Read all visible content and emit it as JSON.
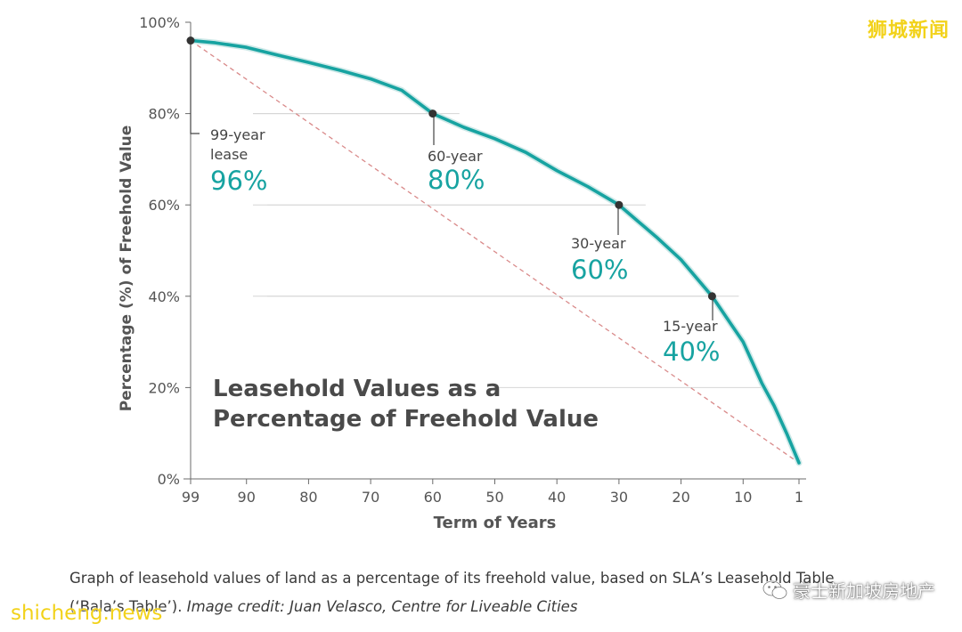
{
  "chart_data": {
    "type": "line",
    "title": "Leasehold Values as a Percentage of Freehold Value",
    "title_lines": [
      "Leasehold Values as a",
      "Percentage of Freehold Value"
    ],
    "xlabel": "Term of Years",
    "ylabel": "Percentage (%) of Freehold Value",
    "x_ticks": [
      99,
      90,
      80,
      70,
      60,
      50,
      40,
      30,
      20,
      10,
      1
    ],
    "y_ticks": [
      "0%",
      "20%",
      "40%",
      "60%",
      "80%",
      "100%"
    ],
    "xlim": [
      99,
      1
    ],
    "ylim": [
      0,
      100
    ],
    "grid": "horizontal at annotated levels",
    "series": [
      {
        "color": "#17a3a1",
        "x": [
          99,
          95,
          90,
          85,
          80,
          75,
          70,
          65,
          60,
          55,
          50,
          45,
          40,
          35,
          30,
          27,
          24,
          20,
          15,
          12,
          10,
          7,
          5,
          3,
          1
        ],
        "y": [
          96,
          95.5,
          94.5,
          92.8,
          91.2,
          89.5,
          87.6,
          85.1,
          80,
          77,
          74.5,
          71.5,
          67.5,
          64,
          60,
          56.5,
          53,
          48,
          40,
          34,
          30,
          21,
          16,
          10,
          3.5
        ]
      }
    ],
    "reference_line": {
      "style": "dashed",
      "color": "#d98a8a",
      "from": [
        99,
        96
      ],
      "to": [
        1,
        3.5
      ]
    },
    "annotations": [
      {
        "x": 99,
        "y": 96,
        "label_lines": [
          "99-year",
          "lease"
        ],
        "value": "96%"
      },
      {
        "x": 60,
        "y": 80,
        "label_lines": [
          "60-year"
        ],
        "value": "80%"
      },
      {
        "x": 30,
        "y": 60,
        "label_lines": [
          "30-year"
        ],
        "value": "60%"
      },
      {
        "x": 15,
        "y": 40,
        "label_lines": [
          "15-year"
        ],
        "value": "40%"
      }
    ],
    "colors": {
      "line": "#17a3a1",
      "value_text": "#17a3a1",
      "grid": "#d6d6d6",
      "axis": "#6b6b6b",
      "marker": "#333333"
    }
  },
  "caption": {
    "text": "Graph of leasehold values of land as a percentage of its freehold value, based on SLA’s Leasehold Table (‘Bala’s Table’). ",
    "credit": "Image credit: Juan Velasco, Centre for Liveable Cities"
  },
  "watermarks": {
    "top_right": "狮城新闻",
    "bottom_left": "shicheng.news",
    "bottom_right": "豪士新加坡房地产"
  }
}
